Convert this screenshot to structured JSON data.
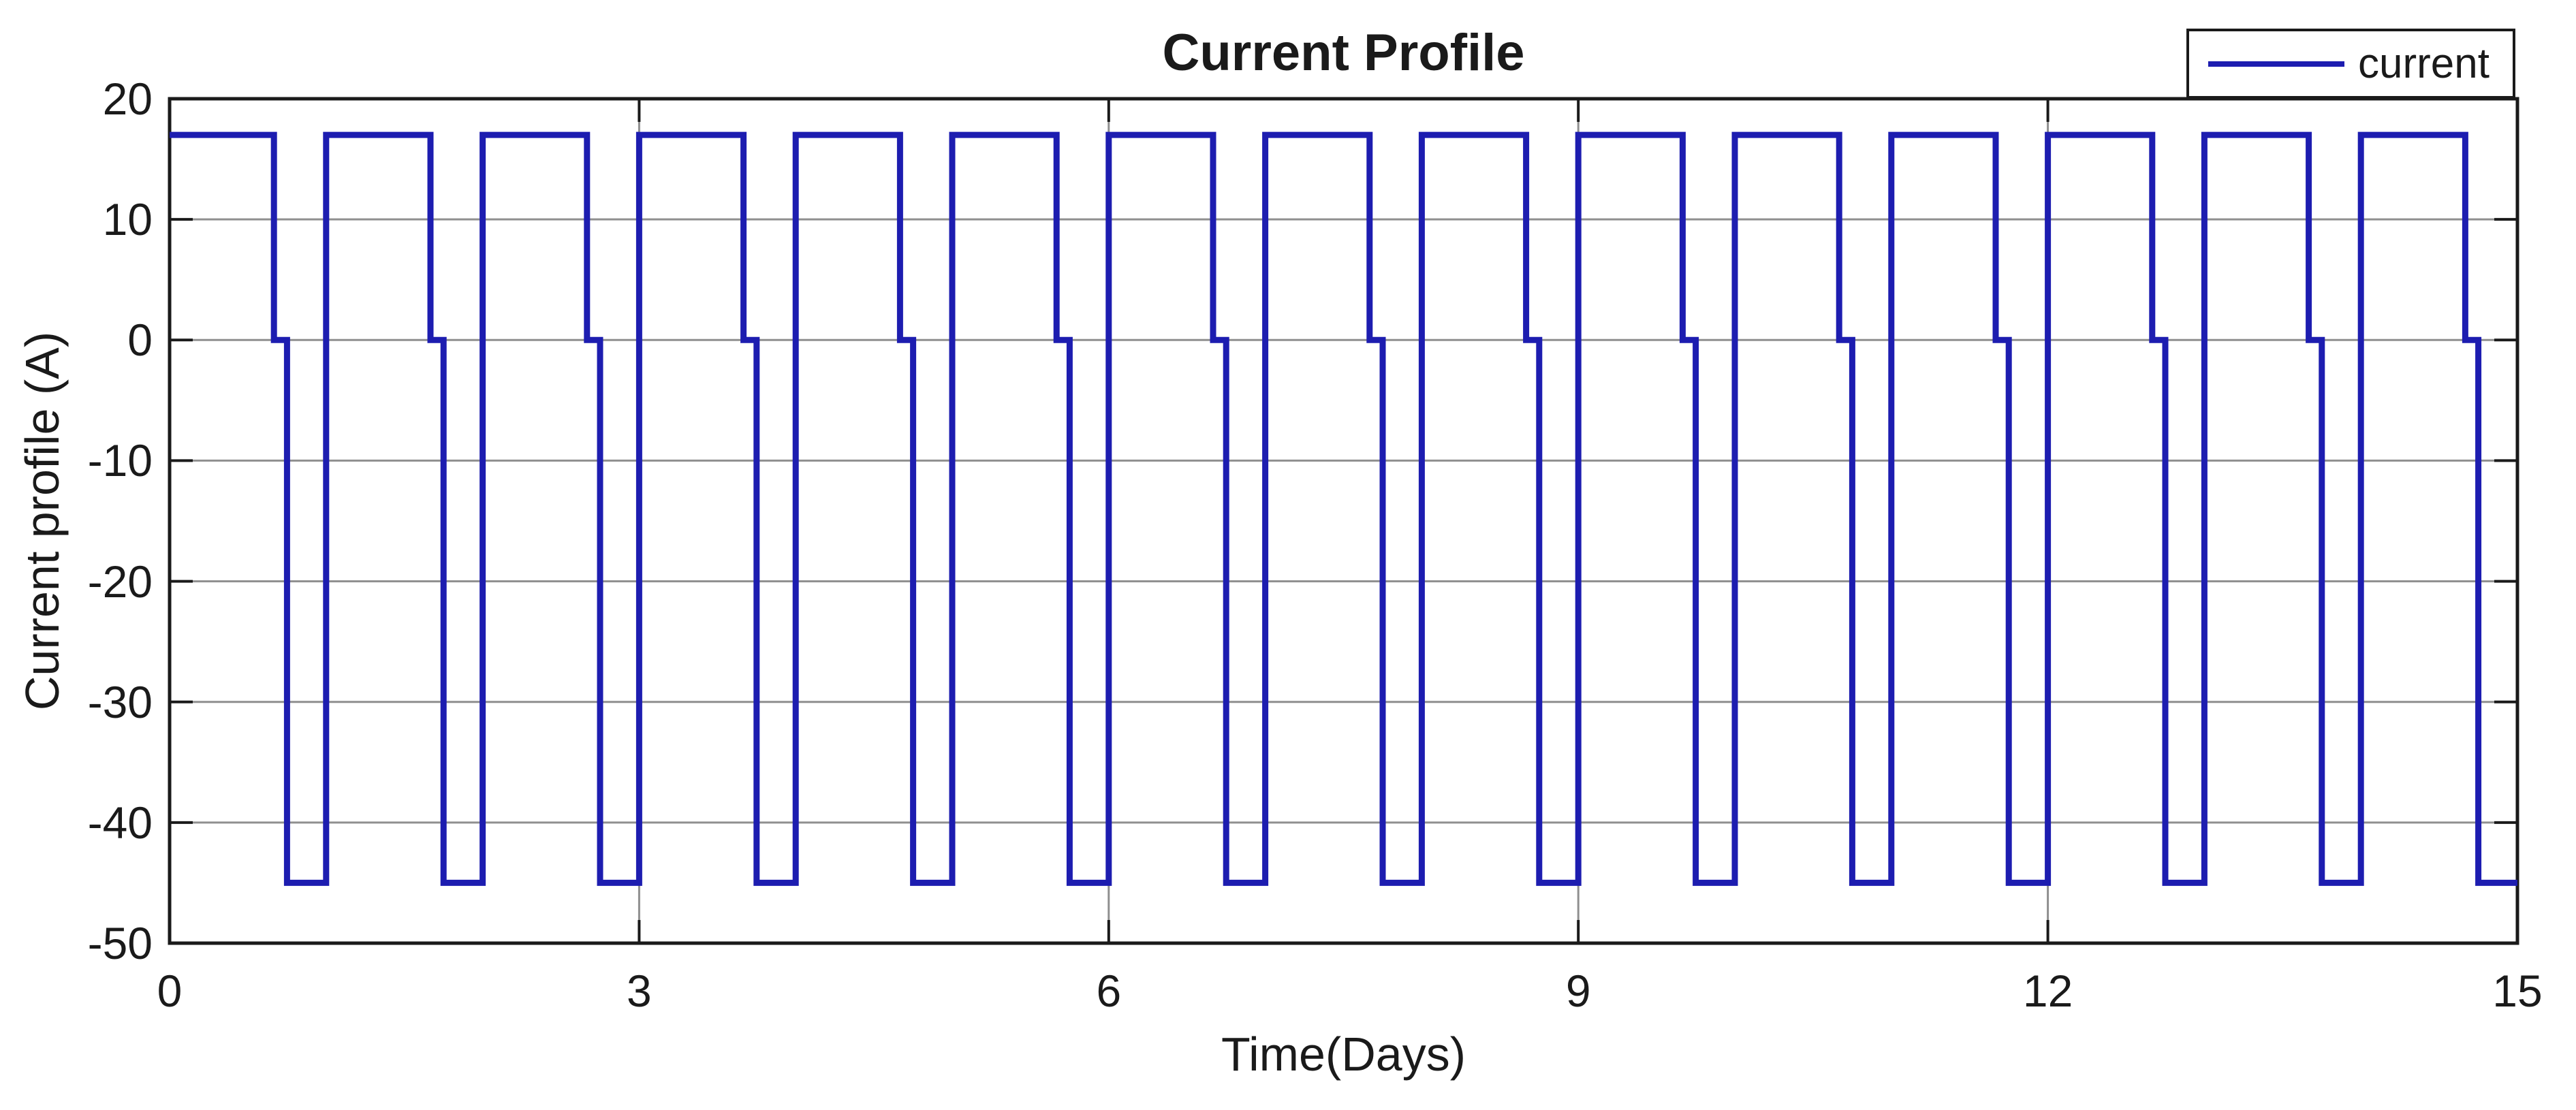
{
  "figure": {
    "background": "#ffffff"
  },
  "colors": {
    "line": "#1d1db0",
    "grid": "#8f8f8f",
    "axis": "#1a1a1a",
    "text": "#1a1a1a",
    "legend_background": "#ffffff"
  },
  "legend": {
    "entries": [
      {
        "label": "current",
        "color": "#1d1db0"
      }
    ]
  },
  "chart_data": {
    "type": "line",
    "title": "Current Profile",
    "xlabel": "Time(Days)",
    "ylabel": "Current profile (A)",
    "xlim": [
      0,
      15
    ],
    "ylim": [
      -50,
      20
    ],
    "xticks": [
      0,
      3,
      6,
      9,
      12,
      15
    ],
    "yticks": [
      20,
      10,
      0,
      -10,
      -20,
      -30,
      -40,
      -50
    ],
    "grid": true,
    "legend_position": "top-right-outside",
    "series": [
      {
        "name": "current",
        "color": "#1d1db0",
        "shape": "step",
        "waveform": {
          "description": "Repeating daily cycle: 17 A for 16 h, 0 A for 2 h, -45 A for 6 h",
          "cycle_days": 1,
          "num_cycles": 15,
          "steps": [
            {
              "level_A": 17,
              "duration_days": 0.6666667
            },
            {
              "level_A": 0,
              "duration_days": 0.0833333
            },
            {
              "level_A": -45,
              "duration_days": 0.25
            }
          ]
        }
      }
    ]
  }
}
